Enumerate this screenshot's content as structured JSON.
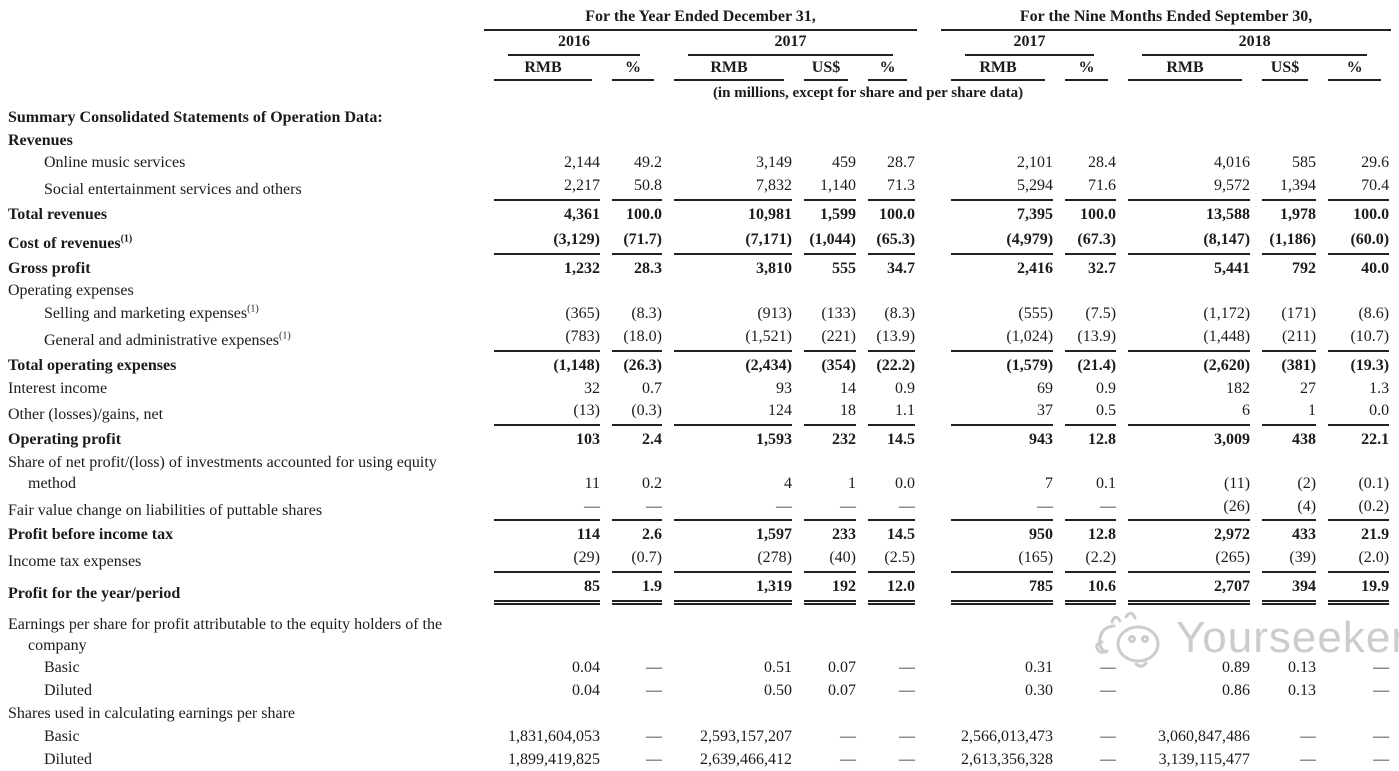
{
  "table": {
    "group_headers": [
      "For the Year Ended December 31,",
      "For the Nine Months Ended September 30,"
    ],
    "year_headers": [
      "2016",
      "2017",
      "2017",
      "2018"
    ],
    "unit_headers": [
      "RMB",
      "%",
      "RMB",
      "US$",
      "%",
      "RMB",
      "%",
      "RMB",
      "US$",
      "%"
    ],
    "units_note": "(in millions, except for share and per share data)",
    "rows": [
      {
        "label": "Summary Consolidated Statements of Operation Data:",
        "bold": true,
        "indent": 0
      },
      {
        "label": "Revenues",
        "bold": true,
        "indent": 0
      },
      {
        "label": "Online music services",
        "indent": 1,
        "values": [
          "2,144",
          "49.2",
          "3,149",
          "459",
          "28.7",
          "2,101",
          "28.4",
          "4,016",
          "585",
          "29.6"
        ]
      },
      {
        "label": "Social entertainment services and others",
        "indent": 1,
        "rule": "single",
        "values": [
          "2,217",
          "50.8",
          "7,832",
          "1,140",
          "71.3",
          "5,294",
          "71.6",
          "9,572",
          "1,394",
          "70.4"
        ]
      },
      {
        "label": "Total revenues",
        "bold": true,
        "indent": 0,
        "values": [
          "4,361",
          "100.0",
          "10,981",
          "1,599",
          "100.0",
          "7,395",
          "100.0",
          "13,588",
          "1,978",
          "100.0"
        ]
      },
      {
        "label": "Cost of revenues",
        "sup": "(1)",
        "bold": true,
        "indent": 0,
        "rule": "single",
        "values": [
          "(3,129)",
          "(71.7)",
          "(7,171)",
          "(1,044)",
          "(65.3)",
          "(4,979)",
          "(67.3)",
          "(8,147)",
          "(1,186)",
          "(60.0)"
        ]
      },
      {
        "label": "Gross profit",
        "bold": true,
        "indent": 0,
        "values": [
          "1,232",
          "28.3",
          "3,810",
          "555",
          "34.7",
          "2,416",
          "32.7",
          "5,441",
          "792",
          "40.0"
        ]
      },
      {
        "label": "Operating expenses",
        "indent": 0
      },
      {
        "label": "Selling and marketing expenses",
        "sup": "(1)",
        "indent": 1,
        "values": [
          "(365)",
          "(8.3)",
          "(913)",
          "(133)",
          "(8.3)",
          "(555)",
          "(7.5)",
          "(1,172)",
          "(171)",
          "(8.6)"
        ]
      },
      {
        "label": "General and administrative expenses",
        "sup": "(1)",
        "indent": 1,
        "rule": "single",
        "values": [
          "(783)",
          "(18.0)",
          "(1,521)",
          "(221)",
          "(13.9)",
          "(1,024)",
          "(13.9)",
          "(1,448)",
          "(211)",
          "(10.7)"
        ]
      },
      {
        "label": "Total operating expenses",
        "bold": true,
        "indent": 0,
        "values": [
          "(1,148)",
          "(26.3)",
          "(2,434)",
          "(354)",
          "(22.2)",
          "(1,579)",
          "(21.4)",
          "(2,620)",
          "(381)",
          "(19.3)"
        ]
      },
      {
        "label": "Interest income",
        "indent": 0,
        "values": [
          "32",
          "0.7",
          "93",
          "14",
          "0.9",
          "69",
          "0.9",
          "182",
          "27",
          "1.3"
        ]
      },
      {
        "label": "Other (losses)/gains, net",
        "indent": 0,
        "rule": "single",
        "values": [
          "(13)",
          "(0.3)",
          "124",
          "18",
          "1.1",
          "37",
          "0.5",
          "6",
          "1",
          "0.0"
        ]
      },
      {
        "label": "Operating profit",
        "bold": true,
        "indent": 0,
        "values": [
          "103",
          "2.4",
          "1,593",
          "232",
          "14.5",
          "943",
          "12.8",
          "3,009",
          "438",
          "22.1"
        ]
      },
      {
        "label": "Share of net profit/(loss) of investments accounted for using equity method",
        "hang": true,
        "values": [
          "11",
          "0.2",
          "4",
          "1",
          "0.0",
          "7",
          "0.1",
          "(11)",
          "(2)",
          "(0.1)"
        ]
      },
      {
        "label": "Fair value change on liabilities of puttable shares",
        "indent": 0,
        "rule": "single",
        "values": [
          "—",
          "—",
          "—",
          "—",
          "—",
          "—",
          "—",
          "(26)",
          "(4)",
          "(0.2)"
        ]
      },
      {
        "label": "Profit before income tax",
        "bold": true,
        "indent": 0,
        "values": [
          "114",
          "2.6",
          "1,597",
          "233",
          "14.5",
          "950",
          "12.8",
          "2,972",
          "433",
          "21.9"
        ]
      },
      {
        "label": "Income tax expenses",
        "indent": 0,
        "rule": "single",
        "values": [
          "(29)",
          "(0.7)",
          "(278)",
          "(40)",
          "(2.5)",
          "(165)",
          "(2.2)",
          "(265)",
          "(39)",
          "(2.0)"
        ]
      },
      {
        "label": "Profit for the year/period",
        "bold": true,
        "indent": 0,
        "rule": "double",
        "values": [
          "85",
          "1.9",
          "1,319",
          "192",
          "12.0",
          "785",
          "10.6",
          "2,707",
          "394",
          "19.9"
        ]
      },
      {
        "label": "Earnings per share for profit attributable to the equity holders of the company",
        "hang": true,
        "section_gap": true
      },
      {
        "label": "Basic",
        "indent": 1,
        "values": [
          "0.04",
          "—",
          "0.51",
          "0.07",
          "—",
          "0.31",
          "—",
          "0.89",
          "0.13",
          "—"
        ]
      },
      {
        "label": "Diluted",
        "indent": 1,
        "values": [
          "0.04",
          "—",
          "0.50",
          "0.07",
          "—",
          "0.30",
          "—",
          "0.86",
          "0.13",
          "—"
        ]
      },
      {
        "label": "Shares used in calculating earnings per share",
        "indent": 0
      },
      {
        "label": "Basic",
        "indent": 1,
        "values": [
          "1,831,604,053",
          "—",
          "2,593,157,207",
          "—",
          "—",
          "2,566,013,473",
          "—",
          "3,060,847,486",
          "—",
          "—"
        ]
      },
      {
        "label": "Diluted",
        "indent": 1,
        "values": [
          "1,899,419,825",
          "—",
          "2,639,466,412",
          "—",
          "—",
          "2,613,356,328",
          "—",
          "3,139,115,477",
          "—",
          "—"
        ]
      }
    ]
  },
  "watermark": {
    "text": "Yourseeker",
    "mascot": "cat-doodle-icon",
    "color": "#c7c7c7"
  },
  "colors": {
    "background": "#ffffff",
    "text": "#1b1b1b",
    "rule": "#222222"
  }
}
